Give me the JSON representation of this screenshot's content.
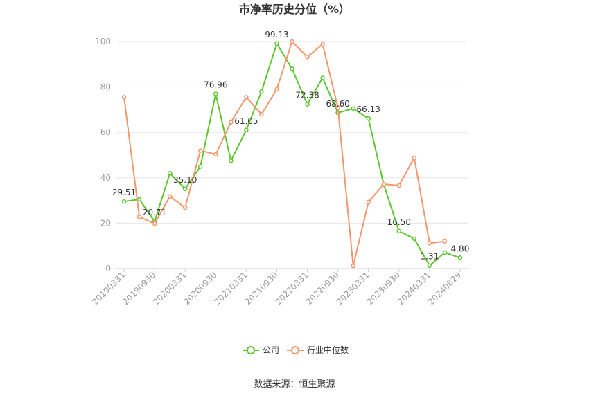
{
  "chart_data": {
    "type": "line",
    "title": "市净率历史分位（%）",
    "x": [
      "20190331",
      "20190630",
      "20190930",
      "20191231",
      "20200331",
      "20200630",
      "20200930",
      "20201231",
      "20210331",
      "20210630",
      "20210930",
      "20211231",
      "20220331",
      "20220630",
      "20220930",
      "20221231",
      "20230331",
      "20230630",
      "20230930",
      "20231231",
      "20240331",
      "20240630",
      "20240829"
    ],
    "xticks": [
      "20190331",
      "20190930",
      "20200331",
      "20200930",
      "20210331",
      "20210930",
      "20220331",
      "20220930",
      "20230331",
      "20230930",
      "20240331",
      "20240829"
    ],
    "ylim": [
      0,
      100
    ],
    "yticks": [
      0,
      20,
      40,
      60,
      80,
      100
    ],
    "series": [
      {
        "name": "公司",
        "color": "#5ec52f",
        "values": [
          29.51,
          30.5,
          20.71,
          42.0,
          35.1,
          45.0,
          76.96,
          47.5,
          61.05,
          78.0,
          99.13,
          88.0,
          72.38,
          84.0,
          68.6,
          70.5,
          66.13,
          37.0,
          16.5,
          13.2,
          1.31,
          7.0,
          4.8
        ],
        "labels": [
          "29.51",
          null,
          "20.71",
          null,
          "35.10",
          null,
          "76.96",
          null,
          "61.05",
          null,
          "99.13",
          null,
          "72.38",
          null,
          "68.60",
          null,
          "66.13",
          null,
          "16.50",
          null,
          "1.31",
          null,
          "4.80"
        ]
      },
      {
        "name": "行业中位数",
        "color": "#f4956a",
        "values": [
          75.5,
          22.8,
          19.8,
          31.8,
          26.8,
          52.0,
          50.3,
          64.5,
          75.5,
          68.0,
          79.0,
          100.0,
          93.2,
          98.8,
          71.0,
          1.2,
          29.3,
          37.2,
          36.6,
          48.8,
          11.2,
          12.0,
          null
        ],
        "labels": []
      }
    ],
    "legend": "bottom-center",
    "source": "数据来源：恒生聚源"
  }
}
